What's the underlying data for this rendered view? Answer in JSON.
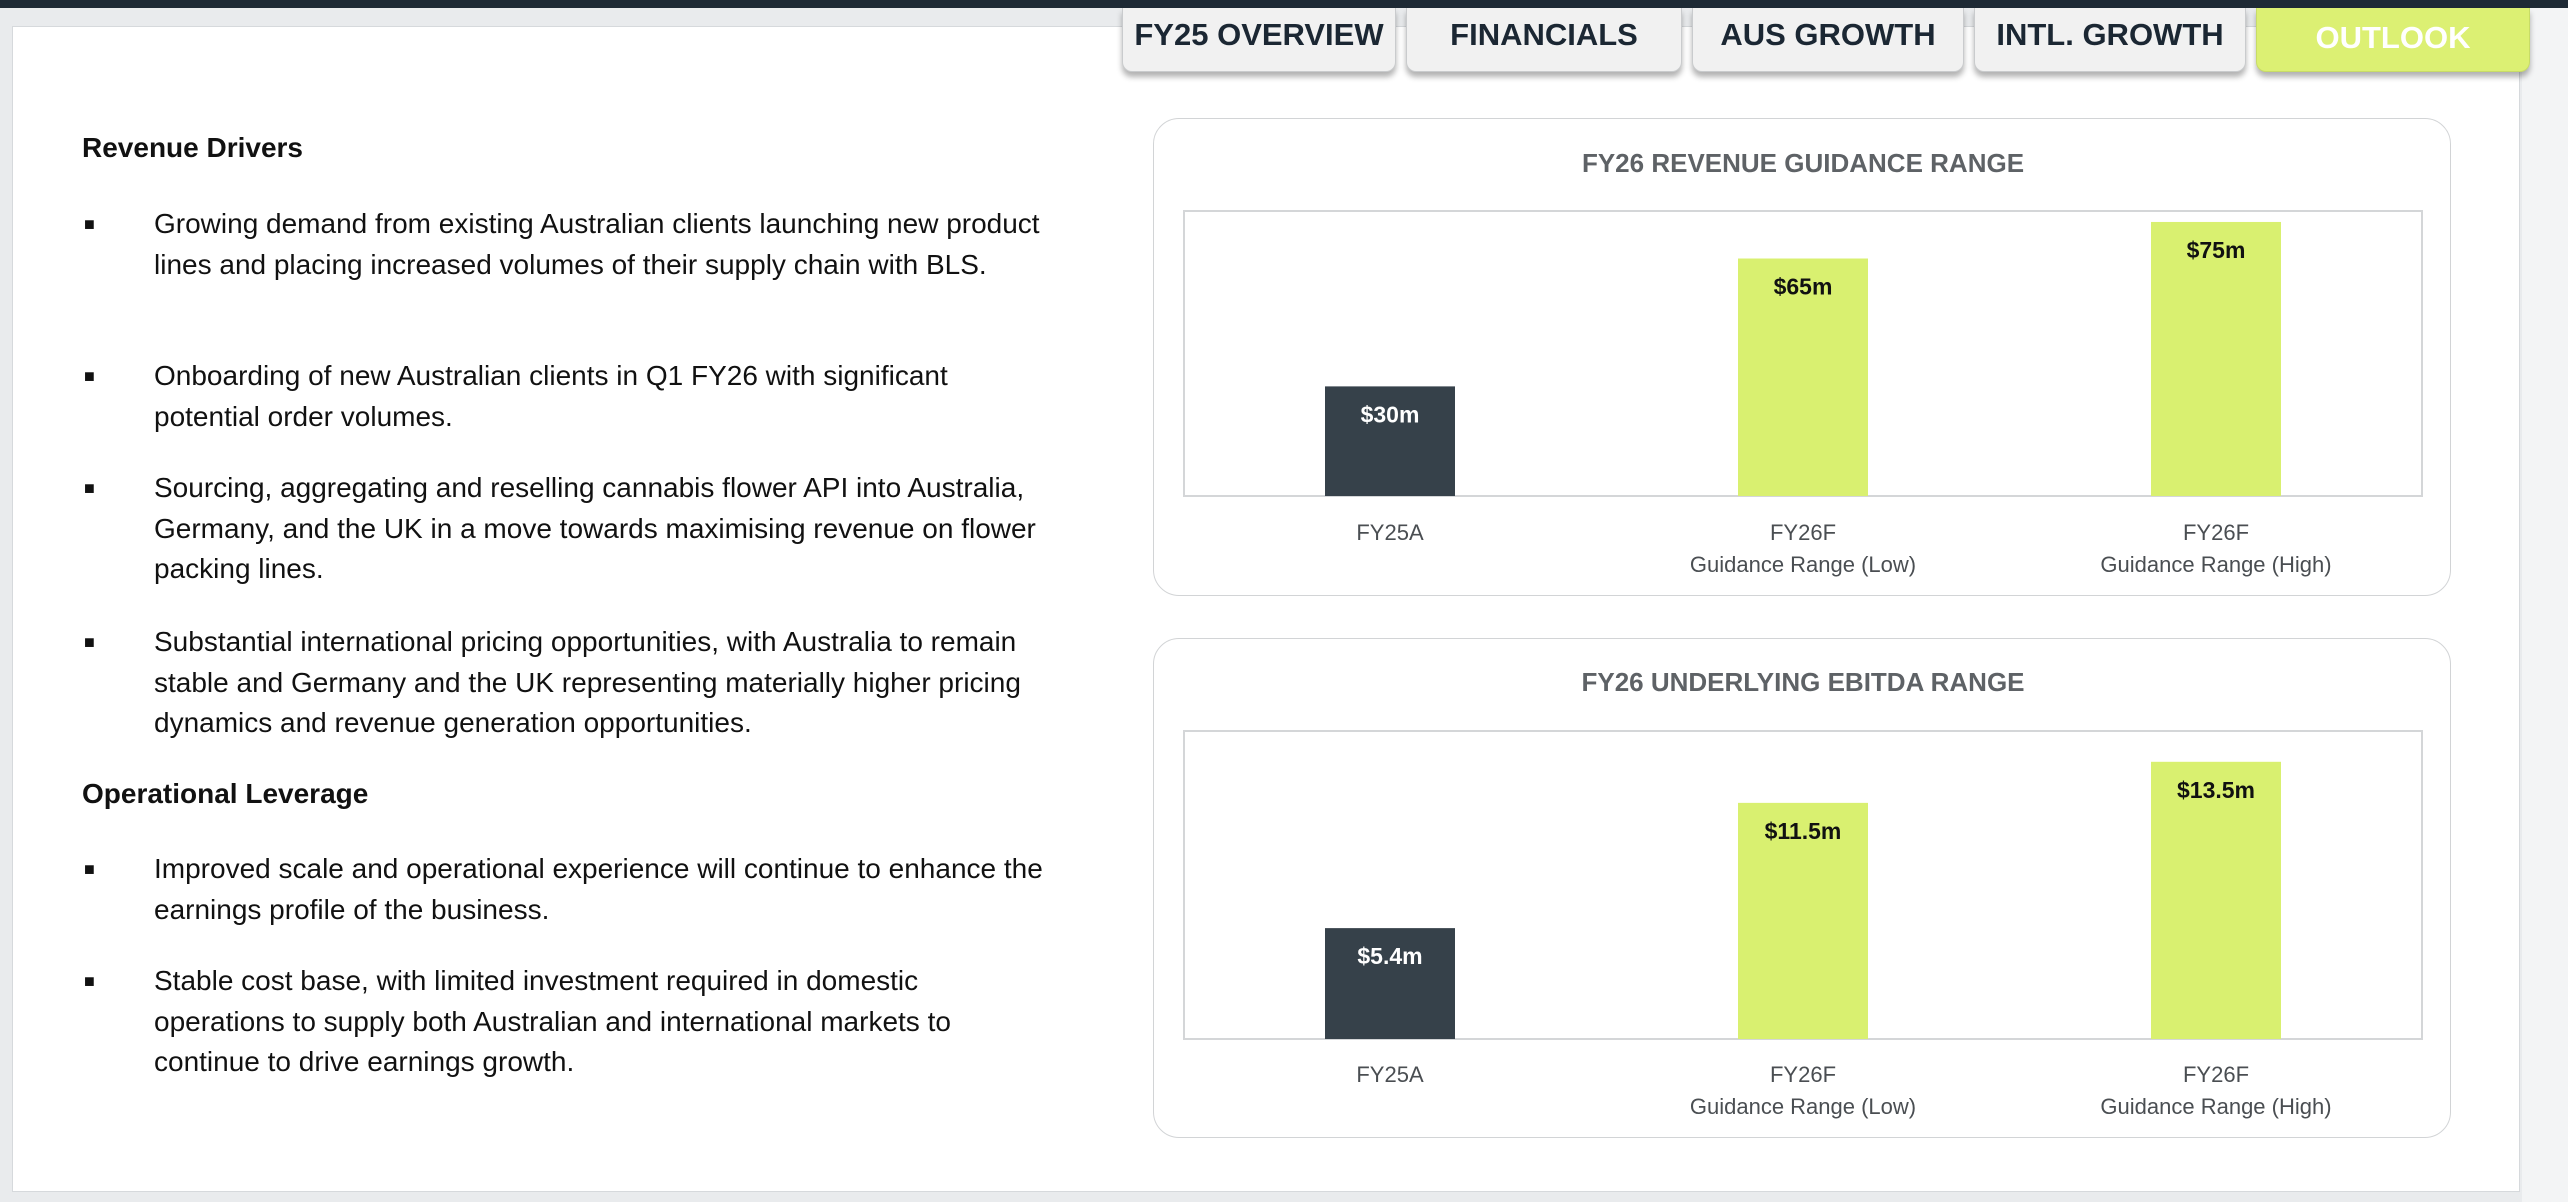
{
  "tabs": [
    {
      "label": "FY25 OVERVIEW",
      "active": false
    },
    {
      "label": "FINANCIALS",
      "active": false
    },
    {
      "label": "AUS GROWTH",
      "active": false
    },
    {
      "label": "INTL. GROWTH",
      "active": false
    },
    {
      "label": "OUTLOOK",
      "active": true
    }
  ],
  "left": {
    "revenue_heading": "Revenue Drivers",
    "revenue_bullets": [
      "Growing demand from existing Australian clients launching new product lines and placing increased volumes of their supply chain with BLS.",
      "Onboarding of new Australian clients in Q1 FY26 with significant potential order volumes.",
      "Sourcing, aggregating and reselling cannabis flower API into Australia, Germany, and the UK in a move towards maximising revenue on flower packing lines.",
      "Substantial international pricing opportunities, with Australia to remain stable and Germany and the UK representing materially higher pricing dynamics and revenue generation opportunities."
    ],
    "operational_heading": "Operational Leverage",
    "operational_bullets": [
      "Improved scale and operational experience will continue to enhance the earnings profile of the business.",
      "Stable cost base, with limited investment required in domestic operations to supply both Australian and international markets to continue to drive earnings growth."
    ]
  },
  "colors": {
    "actual_bar": "#36414a",
    "forecast_bar": "#d9f070",
    "active_tab": "#dcf073"
  },
  "chart_data": [
    {
      "type": "bar",
      "title": "FY26 REVENUE GUIDANCE RANGE",
      "categories": [
        [
          "FY25A"
        ],
        [
          "FY26F",
          "Guidance Range (Low)"
        ],
        [
          "FY26F",
          "Guidance Range (High)"
        ]
      ],
      "values": [
        30,
        65,
        75
      ],
      "value_labels": [
        "$30m",
        "$65m",
        "$75m"
      ],
      "unit": "$m",
      "ylim": [
        0,
        78
      ],
      "grid": false,
      "legend": "none"
    },
    {
      "type": "bar",
      "title": "FY26 UNDERLYING EBITDA RANGE",
      "categories": [
        [
          "FY25A"
        ],
        [
          "FY26F",
          "Guidance Range (Low)"
        ],
        [
          "FY26F",
          "Guidance Range (High)"
        ]
      ],
      "values": [
        5.4,
        11.5,
        13.5
      ],
      "value_labels": [
        "$5.4m",
        "$11.5m",
        "$13.5m"
      ],
      "unit": "$m",
      "ylim": [
        0,
        15.0
      ],
      "grid": false,
      "legend": "none"
    }
  ]
}
